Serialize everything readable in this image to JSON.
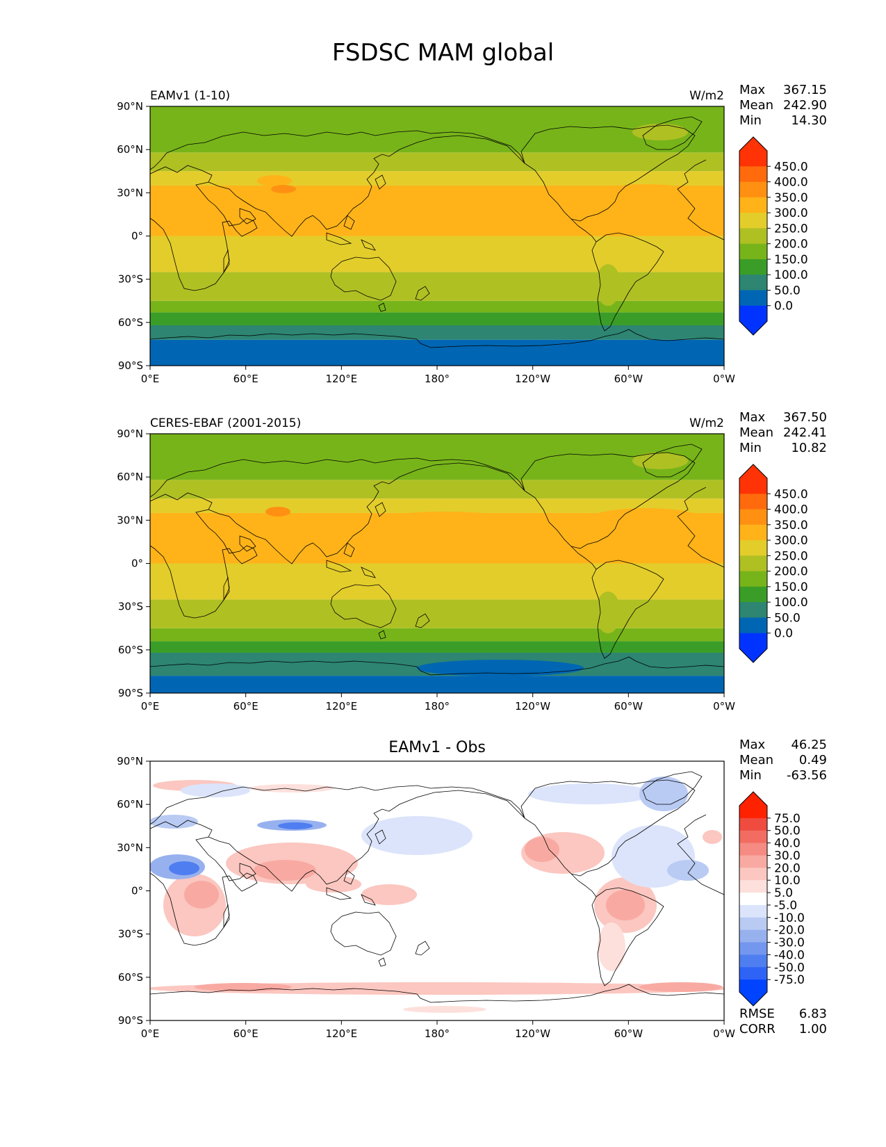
{
  "figure": {
    "title": "FSDSC MAM global"
  },
  "axes": {
    "lat_labels": [
      "90°N",
      "60°N",
      "30°N",
      "0°",
      "30°S",
      "60°S",
      "90°S"
    ],
    "lon_labels": [
      "0°E",
      "60°E",
      "120°E",
      "180°",
      "120°W",
      "60°W",
      "0°W"
    ]
  },
  "colors": {
    "main_levels": [
      "#0033ff",
      "#0066b3",
      "#2d8572",
      "#3a9d27",
      "#77b41a",
      "#afc023",
      "#e3cd2b",
      "#ffb319",
      "#ff9012",
      "#ff6a0d",
      "#ff3306"
    ],
    "diff_levels": [
      "#0044ff",
      "#2e63f6",
      "#4f7ef0",
      "#7397ee",
      "#97b1ef",
      "#b9cbf3",
      "#dbe4fa",
      "#ffffff",
      "#fde0dc",
      "#fbc7c0",
      "#f8aaa2",
      "#f58b82",
      "#f26c62",
      "#ef4b3f",
      "#ff2200"
    ]
  },
  "panels": [
    {
      "title": "EAMv1 (1-10)",
      "units": "W/m2",
      "stats": [
        {
          "label": "Max",
          "value": "367.15"
        },
        {
          "label": "Mean",
          "value": "242.90"
        },
        {
          "label": "Min",
          "value": "14.30"
        }
      ],
      "colorbar_ticks": [
        "450.0",
        "400.0",
        "350.0",
        "300.0",
        "250.0",
        "200.0",
        "150.0",
        "100.0",
        "50.0",
        "0.0"
      ]
    },
    {
      "title": "CERES-EBAF (2001-2015)",
      "units": "W/m2",
      "stats": [
        {
          "label": "Max",
          "value": "367.50"
        },
        {
          "label": "Mean",
          "value": "242.41"
        },
        {
          "label": "Min",
          "value": "10.82"
        }
      ],
      "colorbar_ticks": [
        "450.0",
        "400.0",
        "350.0",
        "300.0",
        "250.0",
        "200.0",
        "150.0",
        "100.0",
        "50.0",
        "0.0"
      ]
    },
    {
      "title": "EAMv1 - Obs",
      "units": "",
      "stats": [
        {
          "label": "Max",
          "value": "46.25"
        },
        {
          "label": "Mean",
          "value": "0.49"
        },
        {
          "label": "Min",
          "value": "-63.56"
        }
      ],
      "colorbar_ticks": [
        "75.0",
        "50.0",
        "40.0",
        "30.0",
        "20.0",
        "10.0",
        "5.0",
        "-5.0",
        "-10.0",
        "-20.0",
        "-30.0",
        "-40.0",
        "-50.0",
        "-75.0"
      ],
      "metrics": [
        {
          "label": "RMSE",
          "value": "6.83"
        },
        {
          "label": "CORR",
          "value": "1.00"
        }
      ]
    }
  ],
  "chart_data": [
    {
      "type": "heatmap",
      "title": "EAMv1 (1-10)",
      "units": "W/m2",
      "xlim": [
        0,
        360
      ],
      "ylim": [
        -90,
        90
      ],
      "contour_levels": [
        0,
        50,
        100,
        150,
        200,
        250,
        300,
        350,
        400,
        450
      ],
      "zonal_profile": [
        {
          "lat_range": [
            -90,
            -72
          ],
          "level": [
            0,
            50
          ]
        },
        {
          "lat_range": [
            -72,
            -62
          ],
          "level": [
            50,
            100
          ]
        },
        {
          "lat_range": [
            -62,
            -53
          ],
          "level": [
            100,
            150
          ]
        },
        {
          "lat_range": [
            -53,
            -45
          ],
          "level": [
            150,
            200
          ]
        },
        {
          "lat_range": [
            -45,
            -25
          ],
          "level": [
            200,
            250
          ]
        },
        {
          "lat_range": [
            -25,
            0
          ],
          "level": [
            250,
            300
          ]
        },
        {
          "lat_range": [
            0,
            35
          ],
          "level": [
            300,
            350
          ]
        },
        {
          "lat_range": [
            35,
            45
          ],
          "level": [
            250,
            300
          ]
        },
        {
          "lat_range": [
            45,
            58
          ],
          "level": [
            200,
            250
          ]
        },
        {
          "lat_range": [
            58,
            90
          ],
          "level": [
            150,
            200
          ]
        }
      ],
      "max": 367.15,
      "mean": 242.9,
      "min": 14.3
    },
    {
      "type": "heatmap",
      "title": "CERES-EBAF (2001-2015)",
      "units": "W/m2",
      "xlim": [
        0,
        360
      ],
      "ylim": [
        -90,
        90
      ],
      "contour_levels": [
        0,
        50,
        100,
        150,
        200,
        250,
        300,
        350,
        400,
        450
      ],
      "zonal_profile": [
        {
          "lat_range": [
            -90,
            -78
          ],
          "level": [
            0,
            50
          ]
        },
        {
          "lat_range": [
            -78,
            -62
          ],
          "level": [
            50,
            100
          ]
        },
        {
          "lat_range": [
            -62,
            -54
          ],
          "level": [
            100,
            150
          ]
        },
        {
          "lat_range": [
            -54,
            -45
          ],
          "level": [
            150,
            200
          ]
        },
        {
          "lat_range": [
            -45,
            -25
          ],
          "level": [
            200,
            250
          ]
        },
        {
          "lat_range": [
            -25,
            0
          ],
          "level": [
            250,
            300
          ]
        },
        {
          "lat_range": [
            0,
            35
          ],
          "level": [
            300,
            350
          ]
        },
        {
          "lat_range": [
            35,
            45
          ],
          "level": [
            250,
            300
          ]
        },
        {
          "lat_range": [
            45,
            58
          ],
          "level": [
            200,
            250
          ]
        },
        {
          "lat_range": [
            58,
            90
          ],
          "level": [
            150,
            200
          ]
        }
      ],
      "max": 367.5,
      "mean": 242.41,
      "min": 10.82
    },
    {
      "type": "heatmap",
      "title": "EAMv1 - Obs",
      "xlim": [
        0,
        360
      ],
      "ylim": [
        -90,
        90
      ],
      "contour_levels": [
        -75,
        -50,
        -40,
        -30,
        -20,
        -10,
        -5,
        5,
        10,
        20,
        30,
        40,
        50,
        75
      ],
      "max": 46.25,
      "mean": 0.49,
      "min": -63.56,
      "rmse": 6.83,
      "corr": 1.0
    }
  ]
}
